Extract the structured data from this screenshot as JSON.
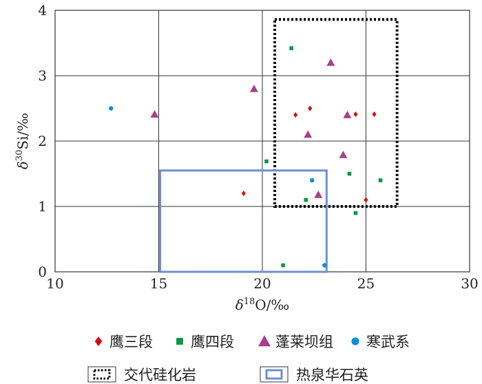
{
  "chart_data": {
    "type": "scatter",
    "xlabel": "δ18O/‰",
    "ylabel": "δ30Si/‰",
    "xlim": [
      10,
      30
    ],
    "ylim": [
      0,
      4
    ],
    "xticks": [
      10,
      15,
      20,
      25,
      30
    ],
    "yticks": [
      0,
      1,
      2,
      3,
      4
    ],
    "grid": true,
    "legend_placement": "bottom",
    "series": [
      {
        "name": "鹰三段",
        "marker": "diamond",
        "color": "#e0000f",
        "points": [
          [
            21.6,
            2.4
          ],
          [
            22.3,
            2.5
          ],
          [
            24.5,
            2.41
          ],
          [
            25.4,
            2.41
          ],
          [
            19.1,
            1.2
          ],
          [
            25.0,
            1.1
          ]
        ]
      },
      {
        "name": "鹰四段",
        "marker": "square",
        "color": "#009944",
        "points": [
          [
            21.4,
            3.42
          ],
          [
            20.2,
            1.69
          ],
          [
            24.2,
            1.5
          ],
          [
            25.7,
            1.4
          ],
          [
            22.1,
            1.1
          ],
          [
            24.5,
            0.9
          ],
          [
            21.0,
            0.1
          ]
        ]
      },
      {
        "name": "蓬莱坝组",
        "marker": "triangle",
        "color": "#a6408c",
        "points": [
          [
            23.3,
            3.2
          ],
          [
            19.6,
            2.8
          ],
          [
            14.8,
            2.41
          ],
          [
            22.2,
            2.1
          ],
          [
            24.1,
            2.4
          ],
          [
            23.9,
            1.79
          ],
          [
            22.7,
            1.18
          ]
        ]
      },
      {
        "name": "寒武系",
        "marker": "circle",
        "color": "#0a8fd8",
        "points": [
          [
            12.7,
            2.5
          ],
          [
            22.4,
            1.4
          ],
          [
            23.0,
            0.1
          ]
        ]
      }
    ],
    "regions": [
      {
        "name": "交代硅化岩",
        "style": "dotted",
        "color": "#000000",
        "x": [
          20.6,
          26.5
        ],
        "y": [
          1.0,
          3.86
        ]
      },
      {
        "name": "热泉华石英",
        "style": "solid",
        "color": "#6f8fd0",
        "x": [
          15.07,
          23.1
        ],
        "y": [
          0.0,
          1.55
        ]
      }
    ]
  }
}
